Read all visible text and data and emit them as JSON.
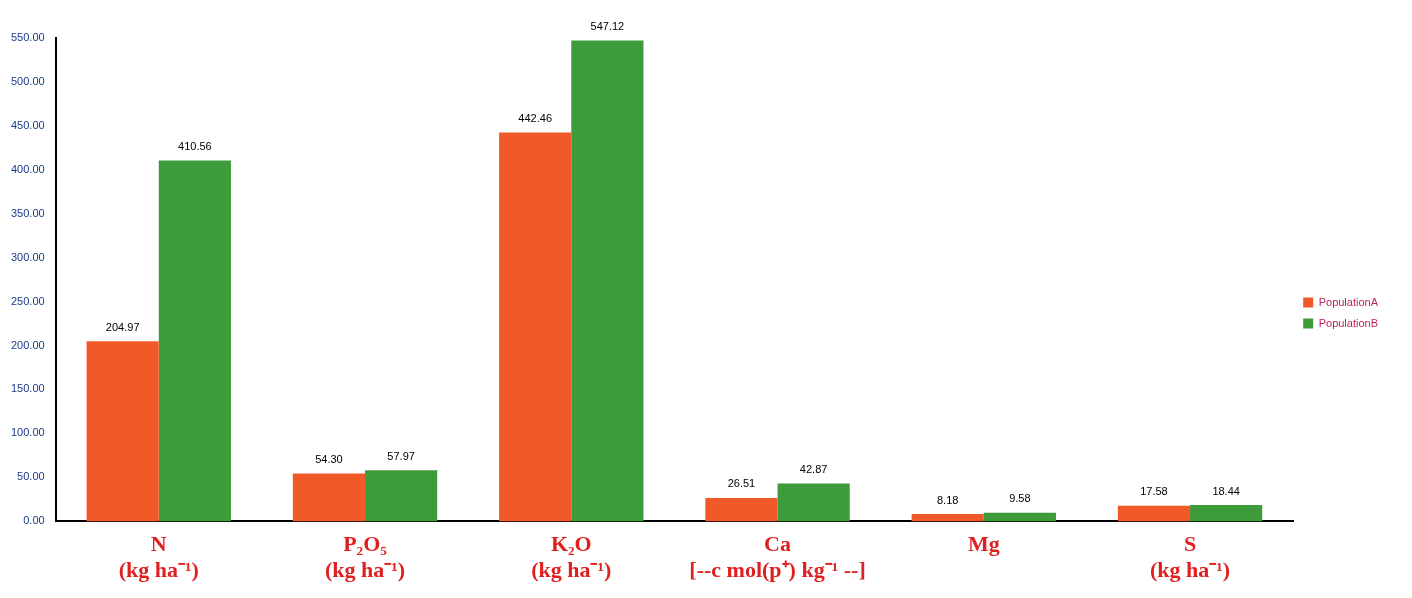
{
  "chart_data": {
    "type": "bar",
    "categories": [
      "N\n(kg ha⁻¹)",
      "P₂O₅\n(kg ha⁻¹)",
      "K₂O\n(kg ha⁻¹)",
      "Ca\n[--c mol(p⁺) kg⁻¹ --]",
      "Mg",
      "S\n(kg ha⁻¹)"
    ],
    "series": [
      {
        "name": "PopulationA",
        "color": "#f05a28",
        "values": [
          204.97,
          54.3,
          442.46,
          26.51,
          8.18,
          17.58
        ],
        "value_labels": [
          "204.97",
          "54.30",
          "442.46",
          "26.51",
          "8.18",
          "17.58"
        ]
      },
      {
        "name": "PopulationB",
        "color": "#3e9b3a",
        "values": [
          410.56,
          57.97,
          547.12,
          42.87,
          9.58,
          18.44
        ],
        "value_labels": [
          "410.56",
          "57.97",
          "547.12",
          "42.87",
          "9.58",
          "18.44"
        ]
      }
    ],
    "ylim": [
      0,
      550
    ],
    "yticks": [
      {
        "value": 0,
        "label": "0.00"
      },
      {
        "value": 50,
        "label": "50.00"
      },
      {
        "value": 100,
        "label": "100.00"
      },
      {
        "value": 150,
        "label": "150.00"
      },
      {
        "value": 200,
        "label": "200.00"
      },
      {
        "value": 250,
        "label": "250.00"
      },
      {
        "value": 300,
        "label": "300.00"
      },
      {
        "value": 350,
        "label": "350.00"
      },
      {
        "value": 400,
        "label": "400.00"
      },
      {
        "value": 450,
        "label": "450.00"
      },
      {
        "value": 500,
        "label": "500.00"
      },
      {
        "value": 550,
        "label": "550.00"
      }
    ],
    "grid": false,
    "legend": "right"
  }
}
